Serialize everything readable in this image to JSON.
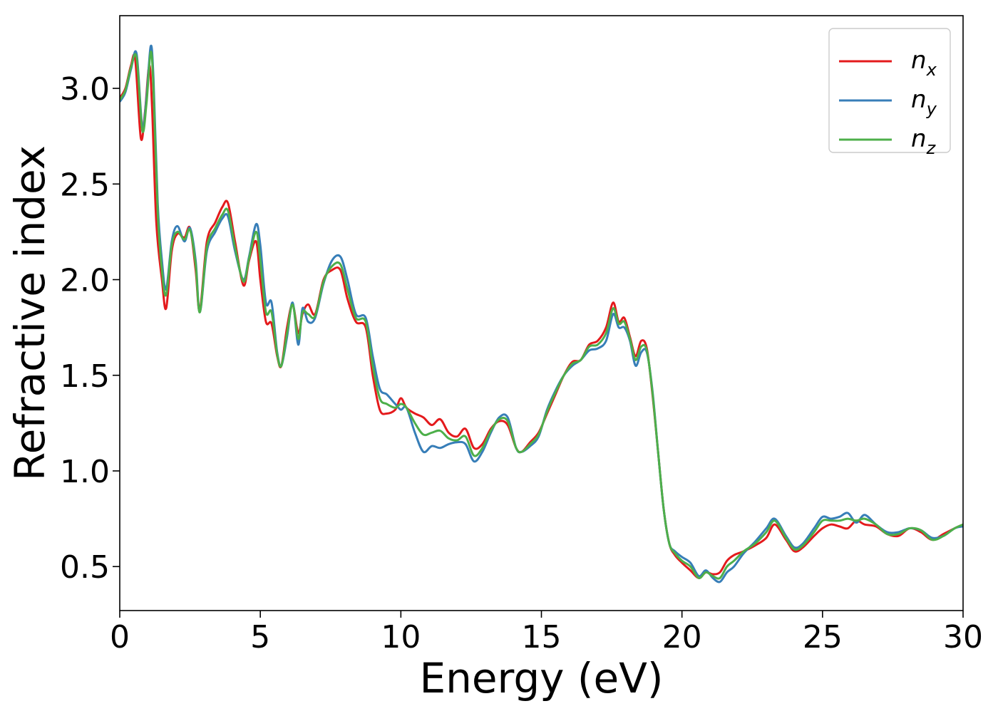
{
  "chart_data": {
    "type": "line",
    "title": "",
    "xlabel": "Energy (eV)",
    "ylabel": "Refractive index",
    "xlim": [
      0,
      30
    ],
    "ylim": [
      0.27,
      3.38
    ],
    "xticks": [
      0,
      5,
      10,
      15,
      20,
      25,
      30
    ],
    "xtick_labels": [
      "0",
      "5",
      "10",
      "15",
      "20",
      "25",
      "30"
    ],
    "yticks": [
      0.5,
      1.0,
      1.5,
      2.0,
      2.5,
      3.0
    ],
    "ytick_labels": [
      "0.5",
      "1.0",
      "1.5",
      "2.0",
      "2.5",
      "3.0"
    ],
    "grid": false,
    "legend": {
      "placement": "top-right"
    },
    "series": [
      {
        "name": "n_x",
        "label_base": "n",
        "label_sub": "x",
        "color": "#e41a1c",
        "x": [
          0,
          0.2,
          0.4,
          0.55,
          0.75,
          0.9,
          1.05,
          1.15,
          1.3,
          1.5,
          1.65,
          1.85,
          2.05,
          2.3,
          2.5,
          2.7,
          2.85,
          3.1,
          3.4,
          3.65,
          3.85,
          4.1,
          4.4,
          4.6,
          4.85,
          5.0,
          5.2,
          5.4,
          5.6,
          5.75,
          5.95,
          6.15,
          6.35,
          6.5,
          6.7,
          6.95,
          7.25,
          7.55,
          7.85,
          8.1,
          8.4,
          8.75,
          9.0,
          9.25,
          9.5,
          9.8,
          10.0,
          10.2,
          10.5,
          10.8,
          11.1,
          11.4,
          11.7,
          12.0,
          12.3,
          12.6,
          12.9,
          13.2,
          13.5,
          13.8,
          14.1,
          14.3,
          14.6,
          14.9,
          15.2,
          15.5,
          15.8,
          16.1,
          16.4,
          16.7,
          17.0,
          17.3,
          17.55,
          17.75,
          17.95,
          18.15,
          18.35,
          18.55,
          18.75,
          18.95,
          19.15,
          19.35,
          19.55,
          19.75,
          20.0,
          20.3,
          20.6,
          20.85,
          21.1,
          21.35,
          21.6,
          21.85,
          22.2,
          22.6,
          23.0,
          23.3,
          23.7,
          24.0,
          24.3,
          24.7,
          25.0,
          25.3,
          25.6,
          25.9,
          26.2,
          26.5,
          26.9,
          27.3,
          27.7,
          28.1,
          28.5,
          28.9,
          29.3,
          29.7,
          30.0
        ],
        "y": [
          2.95,
          3.0,
          3.12,
          3.15,
          2.74,
          2.88,
          3.12,
          2.9,
          2.3,
          2.0,
          1.85,
          2.15,
          2.24,
          2.22,
          2.27,
          2.05,
          1.84,
          2.2,
          2.3,
          2.38,
          2.4,
          2.2,
          1.97,
          2.1,
          2.2,
          2.0,
          1.78,
          1.77,
          1.6,
          1.55,
          1.75,
          1.87,
          1.72,
          1.82,
          1.87,
          1.82,
          2.0,
          2.05,
          2.05,
          1.9,
          1.78,
          1.75,
          1.5,
          1.32,
          1.3,
          1.32,
          1.38,
          1.33,
          1.3,
          1.28,
          1.24,
          1.27,
          1.2,
          1.18,
          1.22,
          1.12,
          1.14,
          1.22,
          1.26,
          1.24,
          1.12,
          1.1,
          1.15,
          1.2,
          1.3,
          1.4,
          1.5,
          1.57,
          1.58,
          1.66,
          1.68,
          1.75,
          1.88,
          1.78,
          1.8,
          1.7,
          1.6,
          1.68,
          1.64,
          1.4,
          1.1,
          0.8,
          0.62,
          0.56,
          0.52,
          0.48,
          0.44,
          0.47,
          0.46,
          0.47,
          0.53,
          0.56,
          0.58,
          0.61,
          0.65,
          0.72,
          0.64,
          0.58,
          0.6,
          0.66,
          0.7,
          0.72,
          0.71,
          0.7,
          0.74,
          0.72,
          0.71,
          0.67,
          0.66,
          0.7,
          0.68,
          0.64,
          0.67,
          0.7,
          0.72
        ]
      },
      {
        "name": "n_y",
        "label_base": "n",
        "label_sub": "y",
        "color": "#377eb8",
        "x": [
          0,
          0.2,
          0.4,
          0.6,
          0.8,
          0.95,
          1.1,
          1.2,
          1.35,
          1.5,
          1.65,
          1.85,
          2.05,
          2.3,
          2.5,
          2.7,
          2.85,
          3.1,
          3.4,
          3.65,
          3.85,
          4.1,
          4.4,
          4.6,
          4.85,
          5.0,
          5.2,
          5.4,
          5.6,
          5.75,
          5.95,
          6.15,
          6.35,
          6.5,
          6.7,
          6.95,
          7.25,
          7.55,
          7.85,
          8.1,
          8.4,
          8.75,
          9.0,
          9.25,
          9.5,
          9.8,
          10.0,
          10.2,
          10.5,
          10.8,
          11.1,
          11.4,
          11.7,
          12.0,
          12.3,
          12.6,
          12.9,
          13.2,
          13.5,
          13.8,
          14.1,
          14.3,
          14.6,
          14.9,
          15.2,
          15.5,
          15.8,
          16.1,
          16.4,
          16.7,
          17.0,
          17.3,
          17.55,
          17.75,
          17.95,
          18.15,
          18.35,
          18.55,
          18.75,
          18.95,
          19.15,
          19.35,
          19.55,
          19.75,
          20.0,
          20.3,
          20.6,
          20.85,
          21.1,
          21.35,
          21.6,
          21.85,
          22.2,
          22.6,
          23.0,
          23.3,
          23.7,
          24.0,
          24.3,
          24.7,
          25.0,
          25.3,
          25.6,
          25.9,
          26.2,
          26.5,
          26.9,
          27.3,
          27.7,
          28.1,
          28.5,
          28.9,
          29.3,
          29.7,
          30.0
        ],
        "y": [
          2.93,
          2.98,
          3.1,
          3.18,
          2.8,
          2.95,
          3.22,
          3.05,
          2.4,
          2.1,
          1.95,
          2.2,
          2.28,
          2.2,
          2.27,
          2.1,
          1.83,
          2.15,
          2.25,
          2.32,
          2.33,
          2.15,
          2.0,
          2.12,
          2.29,
          2.18,
          1.88,
          1.88,
          1.62,
          1.55,
          1.7,
          1.88,
          1.66,
          1.85,
          1.78,
          1.8,
          1.98,
          2.1,
          2.12,
          2.0,
          1.82,
          1.8,
          1.6,
          1.43,
          1.4,
          1.35,
          1.32,
          1.33,
          1.2,
          1.1,
          1.13,
          1.12,
          1.14,
          1.15,
          1.14,
          1.05,
          1.1,
          1.2,
          1.28,
          1.28,
          1.12,
          1.1,
          1.13,
          1.18,
          1.32,
          1.42,
          1.5,
          1.55,
          1.58,
          1.63,
          1.64,
          1.68,
          1.82,
          1.75,
          1.75,
          1.68,
          1.55,
          1.62,
          1.62,
          1.42,
          1.1,
          0.8,
          0.62,
          0.58,
          0.55,
          0.52,
          0.45,
          0.48,
          0.44,
          0.42,
          0.47,
          0.5,
          0.57,
          0.63,
          0.7,
          0.75,
          0.66,
          0.6,
          0.62,
          0.7,
          0.76,
          0.75,
          0.76,
          0.78,
          0.73,
          0.77,
          0.72,
          0.68,
          0.68,
          0.7,
          0.69,
          0.65,
          0.66,
          0.7,
          0.71
        ]
      },
      {
        "name": "n_z",
        "label_base": "n",
        "label_sub": "z",
        "color": "#4daf4a",
        "x": [
          0,
          0.2,
          0.4,
          0.6,
          0.8,
          0.95,
          1.1,
          1.2,
          1.35,
          1.5,
          1.65,
          1.85,
          2.05,
          2.3,
          2.5,
          2.7,
          2.85,
          3.1,
          3.4,
          3.65,
          3.85,
          4.1,
          4.4,
          4.6,
          4.85,
          5.0,
          5.2,
          5.4,
          5.6,
          5.75,
          5.95,
          6.15,
          6.35,
          6.5,
          6.7,
          6.95,
          7.25,
          7.55,
          7.85,
          8.1,
          8.4,
          8.75,
          9.0,
          9.25,
          9.5,
          9.8,
          10.0,
          10.2,
          10.5,
          10.8,
          11.1,
          11.4,
          11.7,
          12.0,
          12.3,
          12.6,
          12.9,
          13.2,
          13.5,
          13.8,
          14.1,
          14.3,
          14.6,
          14.9,
          15.2,
          15.5,
          15.8,
          16.1,
          16.4,
          16.7,
          17.0,
          17.3,
          17.55,
          17.75,
          17.95,
          18.15,
          18.35,
          18.55,
          18.75,
          18.95,
          19.15,
          19.35,
          19.55,
          19.75,
          20.0,
          20.3,
          20.6,
          20.85,
          21.1,
          21.35,
          21.6,
          21.85,
          22.2,
          22.6,
          23.0,
          23.3,
          23.7,
          24.0,
          24.3,
          24.7,
          25.0,
          25.3,
          25.6,
          25.9,
          26.2,
          26.5,
          26.9,
          27.3,
          27.7,
          28.1,
          28.5,
          28.9,
          29.3,
          29.7,
          30.0
        ],
        "y": [
          2.94,
          2.99,
          3.11,
          3.16,
          2.78,
          2.92,
          3.19,
          3.0,
          2.35,
          2.05,
          1.92,
          2.18,
          2.25,
          2.21,
          2.26,
          2.08,
          1.83,
          2.17,
          2.27,
          2.34,
          2.36,
          2.17,
          1.99,
          2.11,
          2.25,
          2.1,
          1.83,
          1.83,
          1.61,
          1.55,
          1.72,
          1.87,
          1.69,
          1.83,
          1.82,
          1.81,
          1.99,
          2.07,
          2.08,
          1.95,
          1.8,
          1.78,
          1.55,
          1.38,
          1.35,
          1.33,
          1.35,
          1.33,
          1.25,
          1.19,
          1.2,
          1.21,
          1.17,
          1.16,
          1.18,
          1.08,
          1.12,
          1.21,
          1.27,
          1.26,
          1.12,
          1.1,
          1.14,
          1.19,
          1.31,
          1.41,
          1.5,
          1.56,
          1.58,
          1.65,
          1.66,
          1.72,
          1.85,
          1.77,
          1.78,
          1.69,
          1.58,
          1.65,
          1.63,
          1.41,
          1.1,
          0.8,
          0.62,
          0.57,
          0.53,
          0.5,
          0.44,
          0.47,
          0.45,
          0.44,
          0.5,
          0.53,
          0.58,
          0.62,
          0.68,
          0.74,
          0.65,
          0.59,
          0.61,
          0.68,
          0.74,
          0.74,
          0.74,
          0.75,
          0.74,
          0.75,
          0.72,
          0.67,
          0.67,
          0.7,
          0.69,
          0.64,
          0.66,
          0.7,
          0.72
        ]
      }
    ]
  }
}
